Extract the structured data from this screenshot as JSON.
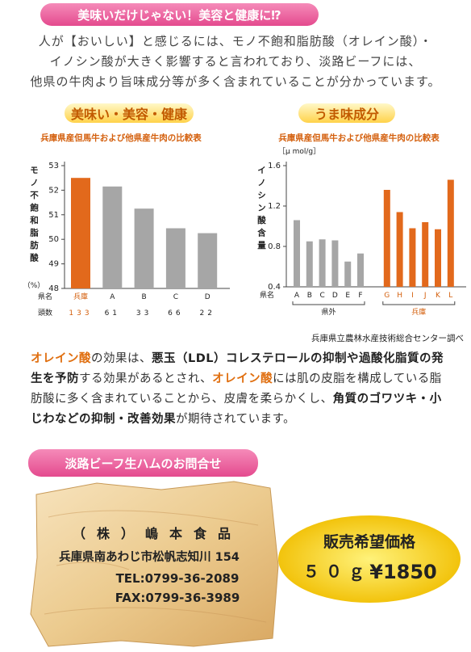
{
  "header": {
    "title": "美味いだけじゃない！美容と健康に⁉"
  },
  "intro": [
    "人が【おいしい】と感じるには、モノ不飽和脂肪酸（オレイン酸）・",
    "イノシン酸が大きく影響すると言われており、淡路ビーフには、",
    "他県の牛肉より旨味成分等が多く含まれていることが分かっています。"
  ],
  "chart_data": [
    {
      "type": "bar",
      "banner": "美味い・美容・健康",
      "title": "兵庫県産但馬牛および他県産牛肉の比較表",
      "ylabel": "モノ不飽和脂肪酸",
      "yunit": "（%）",
      "categories": [
        "兵庫",
        "A",
        "B",
        "C",
        "D"
      ],
      "values": [
        52.5,
        52.15,
        51.25,
        50.45,
        50.25
      ],
      "colors": [
        "#e2691c",
        "#a6a6a6",
        "#a6a6a6",
        "#a6a6a6",
        "#a6a6a6"
      ],
      "ylim": [
        48,
        53
      ],
      "yticks": [
        48,
        49,
        50,
        51,
        52,
        53
      ],
      "row_label": "県名",
      "counts_label": "頭数",
      "counts": [
        133,
        61,
        33,
        66,
        22
      ]
    },
    {
      "type": "bar",
      "banner": "うま味成分",
      "title": "兵庫県産但馬牛および他県産牛肉の比較表",
      "ylabel": "イノシン酸含量",
      "yunit": "［μ mol/g］",
      "categories": [
        "A",
        "B",
        "C",
        "D",
        "E",
        "F",
        "G",
        "H",
        "I",
        "J",
        "K",
        "L"
      ],
      "values": [
        1.06,
        0.85,
        0.87,
        0.86,
        0.65,
        0.73,
        1.36,
        1.14,
        0.98,
        1.04,
        0.97,
        1.46
      ],
      "colors": [
        "#a6a6a6",
        "#a6a6a6",
        "#a6a6a6",
        "#a6a6a6",
        "#a6a6a6",
        "#a6a6a6",
        "#e2691c",
        "#e2691c",
        "#e2691c",
        "#e2691c",
        "#e2691c",
        "#e2691c"
      ],
      "ylim": [
        0.4,
        1.6
      ],
      "yticks": [
        0.4,
        0.8,
        1.2,
        1.6
      ],
      "row_label": "県名",
      "groups": [
        "県外",
        "兵庫"
      ]
    }
  ],
  "source": "兵庫県立農林水産技術総合センター調べ",
  "body": [
    "オレイン酸",
    "の効果は、",
    "悪玉（LDL）コレステロールの抑制や過酸化脂質の発生を予防",
    "する効果があるとされ、",
    "オレイン酸",
    "には肌の皮脂を構成している脂肪酸に多く含まれていることから、皮膚を柔らかくし、",
    "角質のゴワツキ・小じわなどの抑制・改善効果",
    "が期待されています。"
  ],
  "contact": {
    "title": "淡路ビーフ生ハムのお問合せ",
    "company": "（株）嶋本食品",
    "address": "兵庫県南あわじ市松帆志知川 154",
    "tel": "TEL:0799-36-2089",
    "fax": "FAX:0799-36-3989"
  },
  "price": {
    "label": "販売希望価格",
    "size": "５０ｇ",
    "amount": "¥1850"
  }
}
